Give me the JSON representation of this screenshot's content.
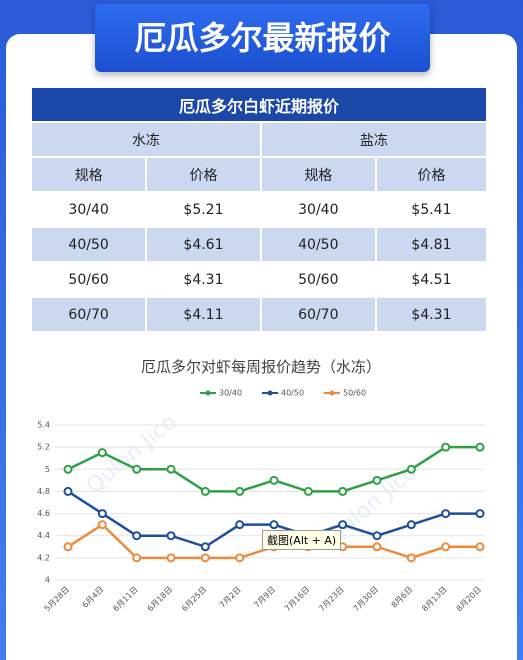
{
  "header": {
    "title": "厄瓜多尔最新报价"
  },
  "table": {
    "title": "厄瓜多尔白虾近期报价",
    "groups": [
      "水冻",
      "盐冻"
    ],
    "columns": [
      "规格",
      "价格",
      "规格",
      "价格"
    ],
    "rows": [
      [
        "30/40",
        "$5.21",
        "30/40",
        "$5.41"
      ],
      [
        "40/50",
        "$4.61",
        "40/50",
        "$4.81"
      ],
      [
        "50/60",
        "$4.31",
        "50/60",
        "$4.51"
      ],
      [
        "60/70",
        "$4.11",
        "60/70",
        "$4.31"
      ]
    ]
  },
  "chart_data": {
    "type": "line",
    "title": "厄瓜多尔对虾每周报价趋势（水冻）",
    "categories": [
      "5月28日",
      "6月4日",
      "6月11日",
      "6月18日",
      "6月25日",
      "7月2日",
      "7月9日",
      "7月16日",
      "7月23日",
      "7月30日",
      "8月6日",
      "8月13日",
      "8月20日"
    ],
    "series": [
      {
        "name": "30/40",
        "color": "#2ea043",
        "values": [
          5.0,
          5.15,
          5.0,
          5.0,
          4.8,
          4.8,
          4.9,
          4.8,
          4.8,
          4.9,
          5.0,
          5.2,
          5.2
        ]
      },
      {
        "name": "40/50",
        "color": "#1f4e9c",
        "values": [
          4.8,
          4.6,
          4.4,
          4.4,
          4.3,
          4.5,
          4.5,
          4.4,
          4.5,
          4.4,
          4.5,
          4.6,
          4.6
        ]
      },
      {
        "name": "50/60",
        "color": "#ef8a3c",
        "values": [
          4.3,
          4.5,
          4.2,
          4.2,
          4.2,
          4.2,
          4.3,
          4.3,
          4.3,
          4.3,
          4.2,
          4.3,
          4.3
        ]
      }
    ],
    "ylim": [
      4,
      5.4
    ],
    "yticks": [
      4,
      4.2,
      4.4,
      4.6,
      4.8,
      5,
      5.2,
      5.4
    ],
    "grid": true,
    "legend": "top",
    "watermark": "Qulon Jico",
    "tooltip": "截图(Alt + A)"
  }
}
